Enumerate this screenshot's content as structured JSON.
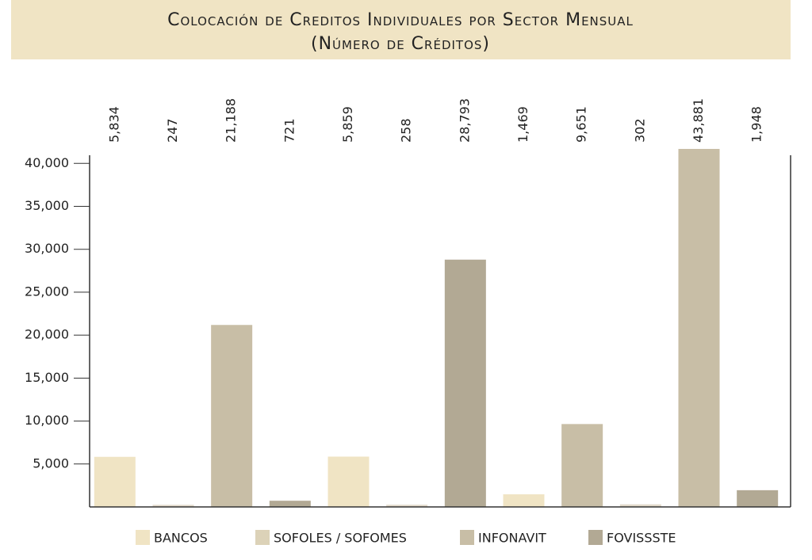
{
  "chart_data": {
    "type": "bar",
    "title": "Colocación de Creditos Individuales por Sector Mensual",
    "subtitle": "(Número de Créditos)",
    "categories": [
      null,
      null,
      null,
      null,
      null,
      null,
      null,
      null,
      null,
      null,
      null,
      null
    ],
    "values": [
      5834,
      247,
      21188,
      721,
      5859,
      258,
      28793,
      1469,
      9651,
      302,
      43881,
      1948
    ],
    "value_labels": [
      "5,834",
      "247",
      "21,188",
      "721",
      "5,859",
      "258",
      "28,793",
      "1,469",
      "9,651",
      "302",
      "43,881",
      "1,948"
    ],
    "colors": [
      "#f0e4c4",
      "#e2dacb",
      "#c8bea6",
      "#b2a994",
      "#f0e4c4",
      "#e2dacb",
      "#b2a994",
      "#f0e4c4",
      "#c8bea6",
      "#e2dacb",
      "#c8bea6",
      "#b2a994"
    ],
    "legend": [
      {
        "name": "BANCOS",
        "color": "#f0e4c4"
      },
      {
        "name": "SOFOLES / SOFOMES",
        "color": "#dcd2b8"
      },
      {
        "name": "INFONAVIT",
        "color": "#c8bea6"
      },
      {
        "name": "FOVISSSTE",
        "color": "#b2a994"
      }
    ],
    "ylim": [
      0,
      41500
    ],
    "yticks": [
      {
        "value": 5000,
        "label": "5,000"
      },
      {
        "value": 10000,
        "label": "10,000"
      },
      {
        "value": 15000,
        "label": "15,000"
      },
      {
        "value": 20000,
        "label": "20,000"
      },
      {
        "value": 25000,
        "label": "25,000"
      },
      {
        "value": 30000,
        "label": "30,000"
      },
      {
        "value": 35000,
        "label": "35,000"
      },
      {
        "value": 40000,
        "label": "40,000"
      }
    ],
    "grid": false
  }
}
